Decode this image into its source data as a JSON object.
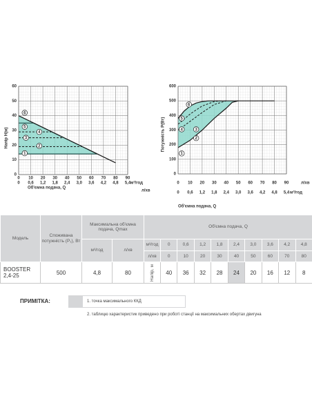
{
  "chart_data": [
    {
      "type": "line",
      "ylabel": "Напір Н(м)",
      "xlabel": "Об'ємна подача, Q",
      "xunit": "м³/год",
      "x2unit": "л/хв",
      "ylim": [
        0,
        60
      ],
      "yticks": [
        0,
        10,
        20,
        30,
        40,
        50,
        60
      ],
      "xlim": [
        0,
        5.4
      ],
      "xticks": [
        0,
        {
          "value": 0.6,
          "label": "0,6"
        },
        {
          "value": 1.2,
          "label": "1,2"
        },
        {
          "value": 1.8,
          "label": "1,8"
        },
        {
          "value": 2.4,
          "label": "2,4"
        },
        {
          "value": 3.0,
          "label": "3,0"
        },
        {
          "value": 3.6,
          "label": "3,6"
        },
        {
          "value": 4.2,
          "label": "4,2"
        },
        {
          "value": 4.8,
          "label": "4,8"
        },
        {
          "value": 5.4,
          "label": "5,4"
        }
      ],
      "x2lim": [
        0,
        90
      ],
      "x2ticks": [
        0,
        10,
        20,
        30,
        40,
        50,
        60,
        70,
        80,
        90
      ],
      "grid": true,
      "fill_between": [
        1,
        2
      ],
      "fill_color": "#8fd8cc",
      "series": [
        {
          "color": "#1f4f4a",
          "axis": "x2",
          "x": [
            0,
            12.5,
            65
          ],
          "values": [
            35,
            35,
            14
          ]
        },
        {
          "color": "#1f4f4a",
          "axis": "x2",
          "x": [
            0,
            65
          ],
          "values": [
            14,
            14
          ]
        },
        {
          "color": "#1a1a1a",
          "axis": "x2",
          "x": [
            0,
            80
          ],
          "values": [
            40,
            8
          ]
        },
        {
          "color": "#1a1a1a",
          "axis": "x2",
          "dash": true,
          "x": [
            0,
            27
          ],
          "values": [
            29,
            29
          ]
        },
        {
          "color": "#1a1a1a",
          "axis": "x2",
          "dash": true,
          "x": [
            0,
            37
          ],
          "values": [
            25,
            25
          ]
        },
        {
          "color": "#1a1a1a",
          "axis": "x2",
          "dash": true,
          "x": [
            0,
            52
          ],
          "values": [
            19,
            19
          ]
        }
      ],
      "markers": [
        "1",
        "2",
        "3",
        "4",
        "5",
        "6"
      ]
    },
    {
      "type": "line",
      "ylabel": "Потужність Р(Вт)",
      "xlabel": "Об'ємна подача, Q",
      "xunit": "м³/год",
      "x2unit": "л/хв",
      "ylim": [
        0,
        600
      ],
      "yticks": [
        0,
        100,
        200,
        300,
        400,
        500,
        600
      ],
      "xlim": [
        0,
        5.4
      ],
      "xticks": [
        0,
        {
          "value": 0.6,
          "label": "0,6"
        },
        {
          "value": 1.2,
          "label": "1,2"
        },
        {
          "value": 1.8,
          "label": "1,8"
        },
        {
          "value": 2.4,
          "label": "2,4"
        },
        {
          "value": 3.0,
          "label": "3,0"
        },
        {
          "value": 3.6,
          "label": "3,6"
        },
        {
          "value": 4.2,
          "label": "4,2"
        },
        {
          "value": 4.8,
          "label": "4,8"
        },
        {
          "value": 5.4,
          "label": "5,4"
        }
      ],
      "x2lim": [
        0,
        90
      ],
      "x2ticks": [
        0,
        10,
        20,
        30,
        40,
        50,
        60,
        70,
        80,
        90
      ],
      "grid": true,
      "fill_between": [
        0,
        1
      ],
      "fill_color": "#8fd8cc",
      "series": [
        {
          "color": "#1a1a1a",
          "axis": "x2",
          "x": [
            0,
            5,
            10,
            15,
            20,
            25,
            30
          ],
          "values": [
            380,
            430,
            465,
            485,
            495,
            500,
            500
          ]
        },
        {
          "color": "#1a1a1a",
          "axis": "x2",
          "x": [
            0,
            10,
            20,
            30,
            40,
            45,
            50
          ],
          "values": [
            180,
            230,
            300,
            380,
            450,
            490,
            500
          ]
        },
        {
          "color": "#1a1a1a",
          "axis": "x2",
          "x": [
            30,
            80
          ],
          "values": [
            500,
            500
          ]
        },
        {
          "color": "#1a1a1a",
          "axis": "x2",
          "dash": true,
          "x": [
            0,
            10,
            20,
            30,
            40
          ],
          "values": [
            300,
            360,
            420,
            475,
            500
          ]
        },
        {
          "color": "#1a1a1a",
          "axis": "x2",
          "dash": true,
          "x": [
            0,
            10,
            20,
            30,
            35
          ],
          "values": [
            340,
            410,
            465,
            495,
            500
          ]
        }
      ],
      "markers": [
        "1",
        "2",
        "3",
        "4",
        "5",
        "6"
      ]
    }
  ],
  "table": {
    "header": {
      "model": "Модель",
      "power": "Споживана потужність (P₁), Вт",
      "qmax": "Максимальна об'ємна подача, Qmax",
      "q": "Об'ємна подача, Q",
      "unit_m3": "м³/год",
      "unit_lpm": "л/хв",
      "head": "Напір, м"
    },
    "q_m3": [
      "0",
      "0,6",
      "1,2",
      "1,8",
      "2,4",
      "3,0",
      "3,6",
      "4,2",
      "4,8"
    ],
    "q_lpm": [
      0,
      10,
      20,
      30,
      40,
      50,
      60,
      70,
      80
    ],
    "rows": [
      {
        "model": "BOOSTER 2,4-25",
        "power": 500,
        "qmax_m3": "4,8",
        "qmax_lpm": 80,
        "head": [
          40,
          36,
          32,
          28,
          24,
          20,
          16,
          12,
          8
        ]
      }
    ],
    "highlight_index": 4
  },
  "notes": {
    "title": "ПРИМІТКА:",
    "items": [
      "1. точка максимального ККД",
      "2. таблицю характеристик  приведено при  роботі станції на максимальних обертах двигуна"
    ]
  }
}
